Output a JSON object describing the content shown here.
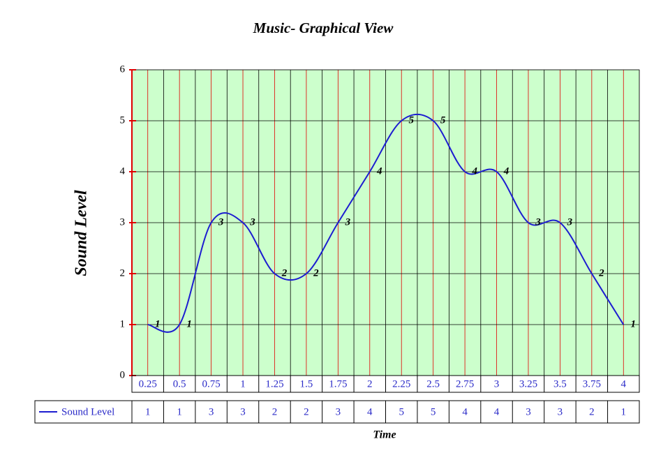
{
  "chart_data": {
    "type": "line",
    "title": "Music- Graphical View",
    "x_label": "Time",
    "y_label": "Sound Level",
    "categories": [
      "0.25",
      "0.5",
      "0.75",
      "1",
      "1.25",
      "1.5",
      "1.75",
      "2",
      "2.25",
      "2.5",
      "2.75",
      "3",
      "3.25",
      "3.5",
      "3.75",
      "4"
    ],
    "series": [
      {
        "name": "Sound Level",
        "color": "#1c1cd0",
        "values": [
          1,
          1,
          3,
          3,
          2,
          2,
          3,
          4,
          5,
          5,
          4,
          4,
          3,
          3,
          2,
          1
        ]
      }
    ],
    "ylim": [
      0,
      6
    ],
    "yticks": [
      0,
      1,
      2,
      3,
      4,
      5,
      6
    ],
    "grid": true,
    "background": "#ccffcc"
  }
}
